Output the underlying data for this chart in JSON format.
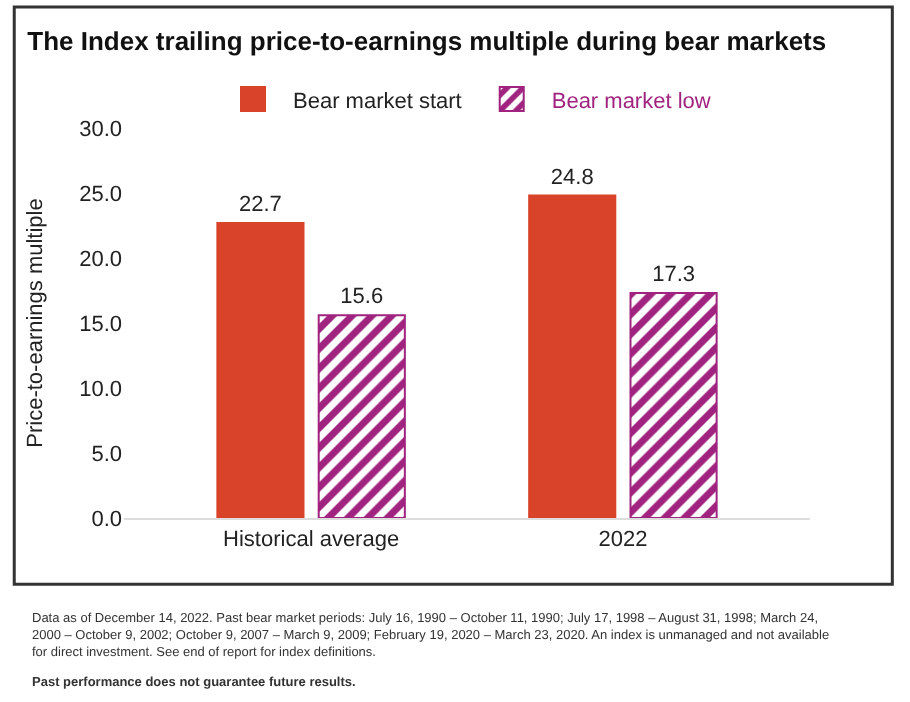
{
  "chart_data": {
    "type": "bar",
    "title": "The Index trailing price-to-earnings multiple during bear markets",
    "ylabel": "Price-to-earnings multiple",
    "categories": [
      "Historical average",
      "2022"
    ],
    "series": [
      {
        "name": "Bear market start",
        "color": "#d9432a",
        "values": [
          22.7,
          24.8
        ]
      },
      {
        "name": "Bear market low",
        "color": "#a0237f",
        "values": [
          15.6,
          17.3
        ]
      }
    ],
    "ylim": [
      0,
      30
    ],
    "yticks": [
      {
        "value": 0,
        "label": "0.0"
      },
      {
        "value": 5,
        "label": "5.0"
      },
      {
        "value": 10,
        "label": "10.0"
      },
      {
        "value": 15,
        "label": "15.0"
      },
      {
        "value": 20,
        "label": "20.0"
      },
      {
        "value": 25,
        "label": "25.0"
      },
      {
        "value": 30,
        "label": "30.0"
      }
    ],
    "data_labels": true,
    "legend": "top",
    "annotations": [
      "Data as of December 14, 2022. Past bear market periods: July 16, 1990 – October 11, 1990; July 17, 1998 – August 31, 1998; March 24, 2000 – October 9, 2002; October 9, 2007 – March 9, 2009; February 19, 2020 – March 23, 2020. An index is unmanaged and not available for direct investment. See end of report for index definitions.",
      "Past performance does not guarantee future results."
    ]
  }
}
